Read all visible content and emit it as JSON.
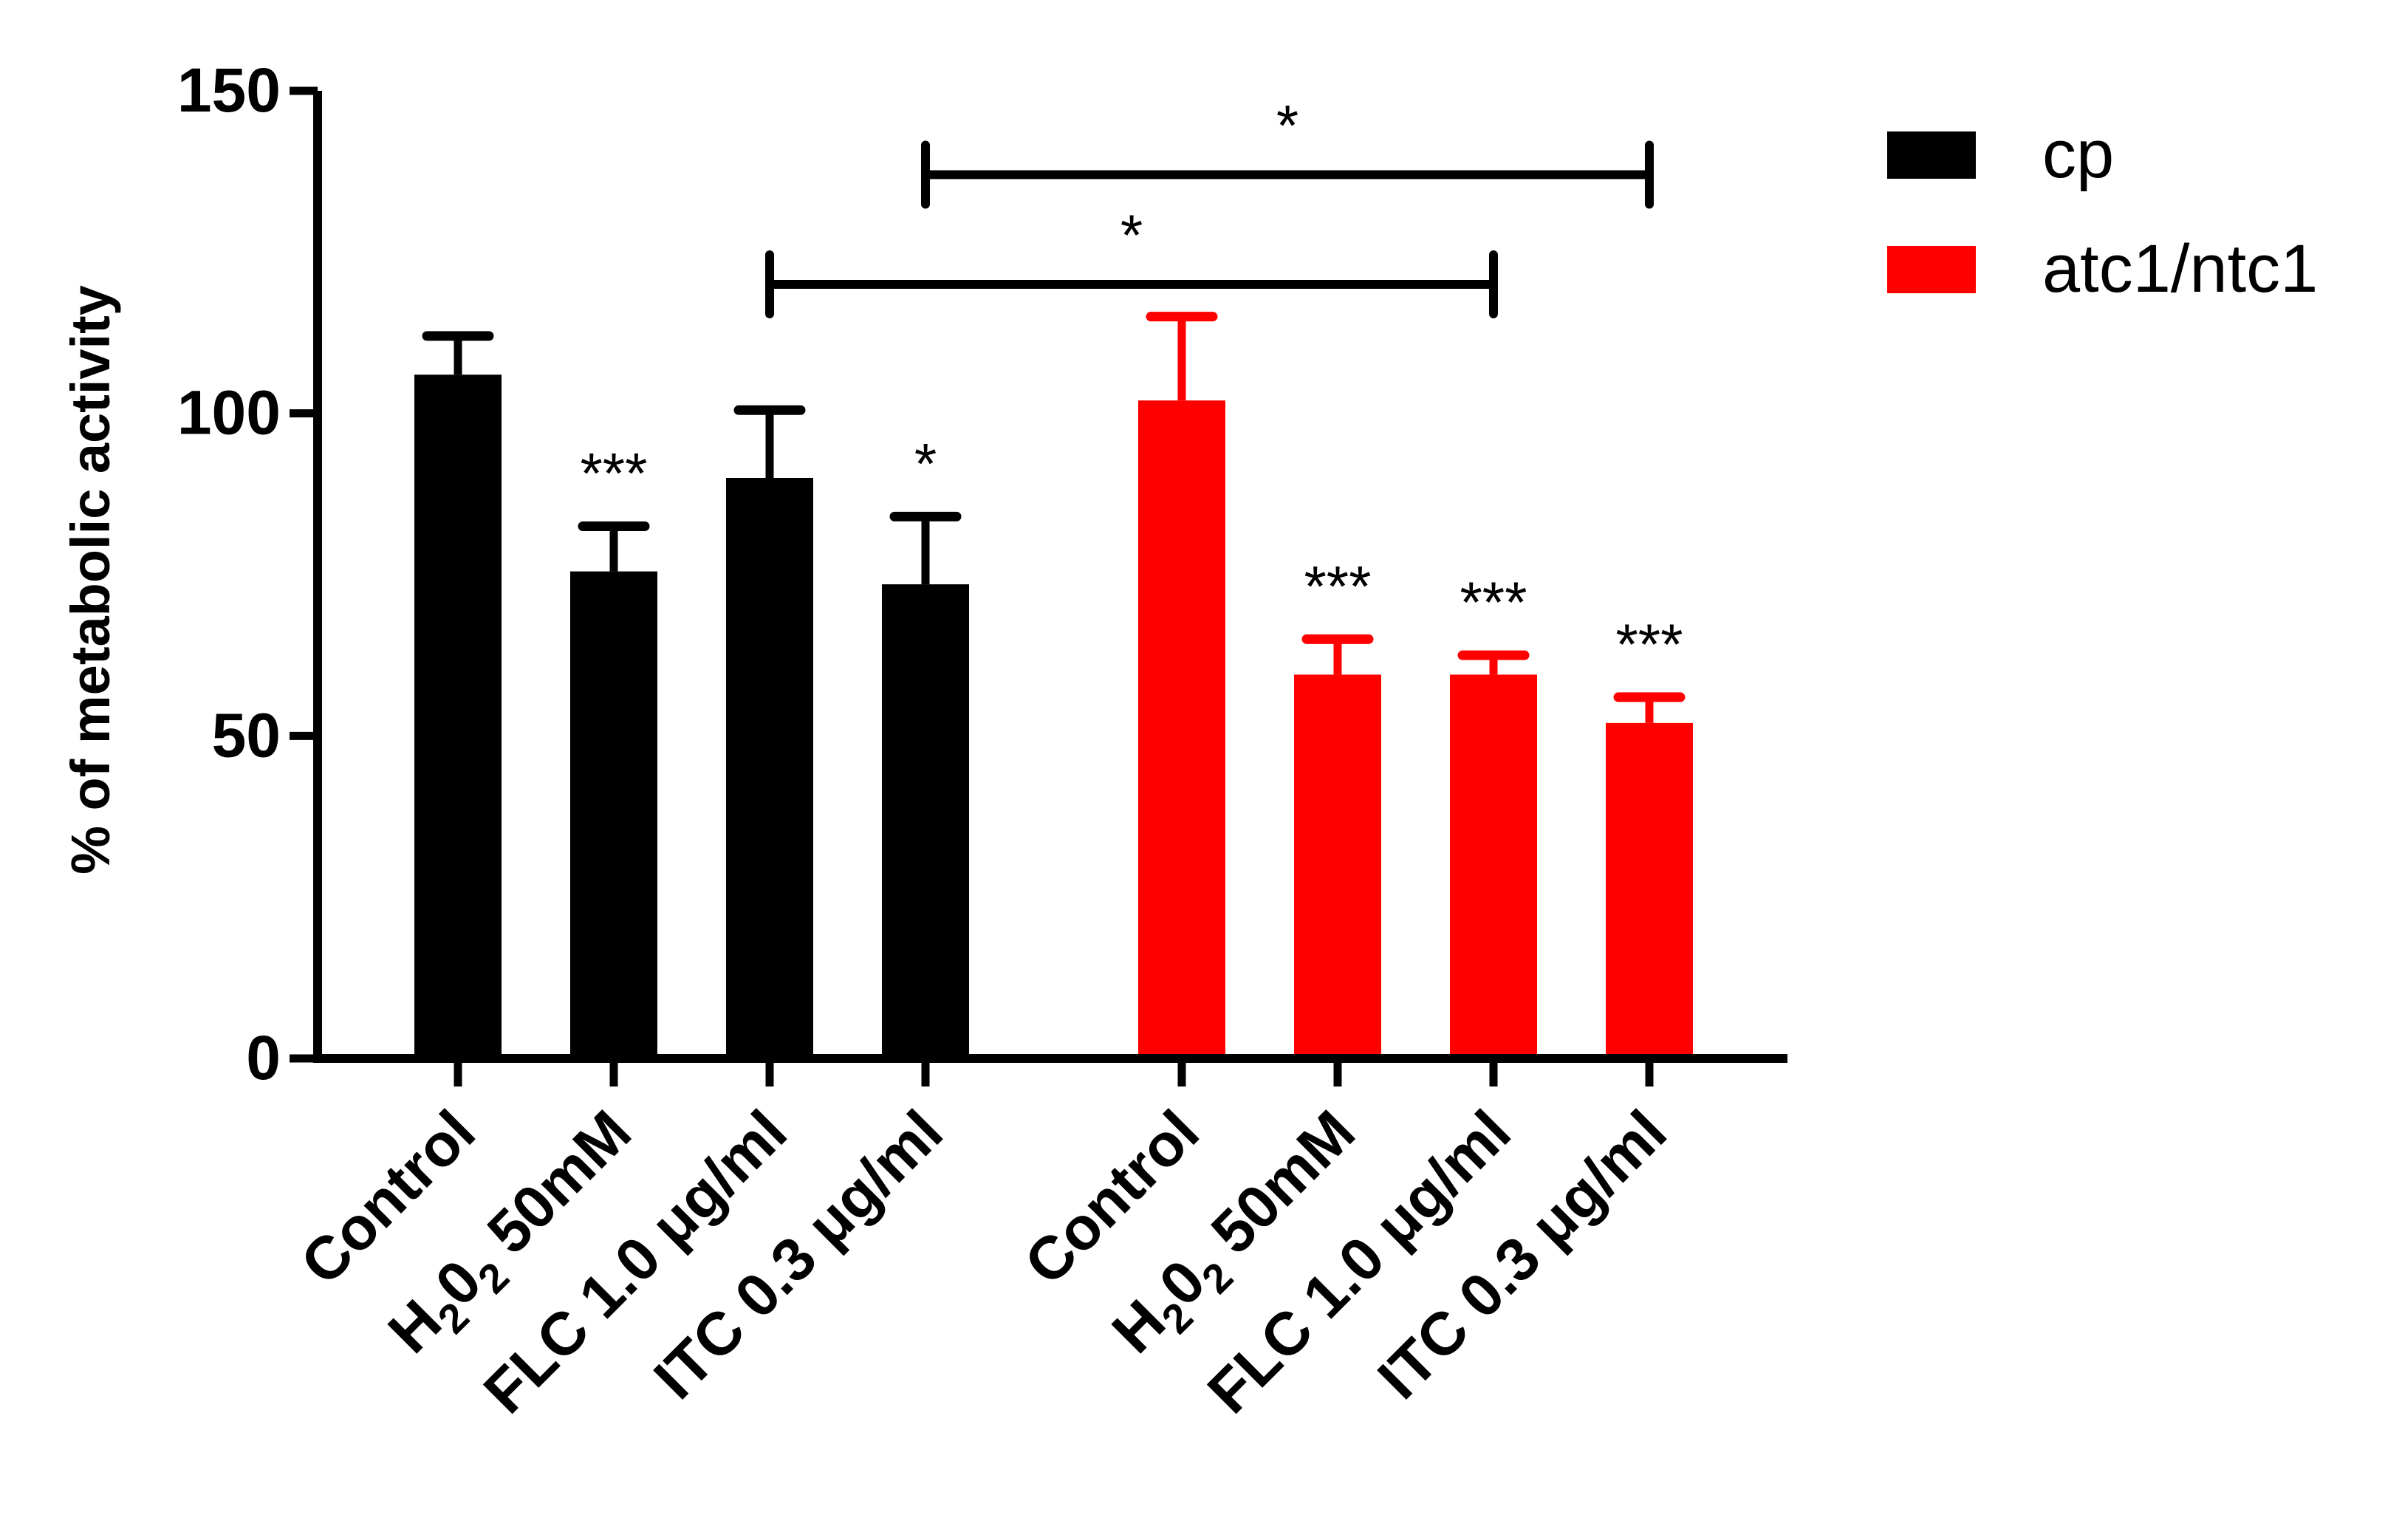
{
  "chart_data": {
    "type": "bar",
    "ylabel": "% of metabolic activity",
    "ylim": [
      0,
      150
    ],
    "yticks": [
      0,
      50,
      100,
      150
    ],
    "categories": [
      "Control",
      "H202 50mM",
      "FLC 1.0 μg/ml",
      "ITC 0.3 μg/ml"
    ],
    "category_labels": [
      {
        "main": "H",
        "sub": "2",
        "mid": "0",
        "sub2": "2",
        "rest": " 50mM"
      }
    ],
    "series": [
      {
        "name": "cp",
        "color": "#000000",
        "values": [
          106,
          75.5,
          90,
          73.5
        ],
        "errors": [
          6,
          7,
          10.5,
          10.5
        ],
        "significance": [
          "",
          "***",
          "",
          "*"
        ]
      },
      {
        "name": "atc1/ntc1",
        "color": "#ff0000",
        "values": [
          102,
          59.5,
          59.5,
          52
        ],
        "errors": [
          13,
          5.5,
          3,
          4
        ],
        "significance": [
          "",
          "***",
          "***",
          "***"
        ]
      }
    ],
    "comparisons": [
      {
        "from": [
          0,
          2
        ],
        "to": [
          1,
          2
        ],
        "y": 120,
        "label": "*"
      },
      {
        "from": [
          0,
          3
        ],
        "to": [
          1,
          3
        ],
        "y": 137,
        "label": "*"
      }
    ],
    "legend": "right",
    "grid": false
  }
}
